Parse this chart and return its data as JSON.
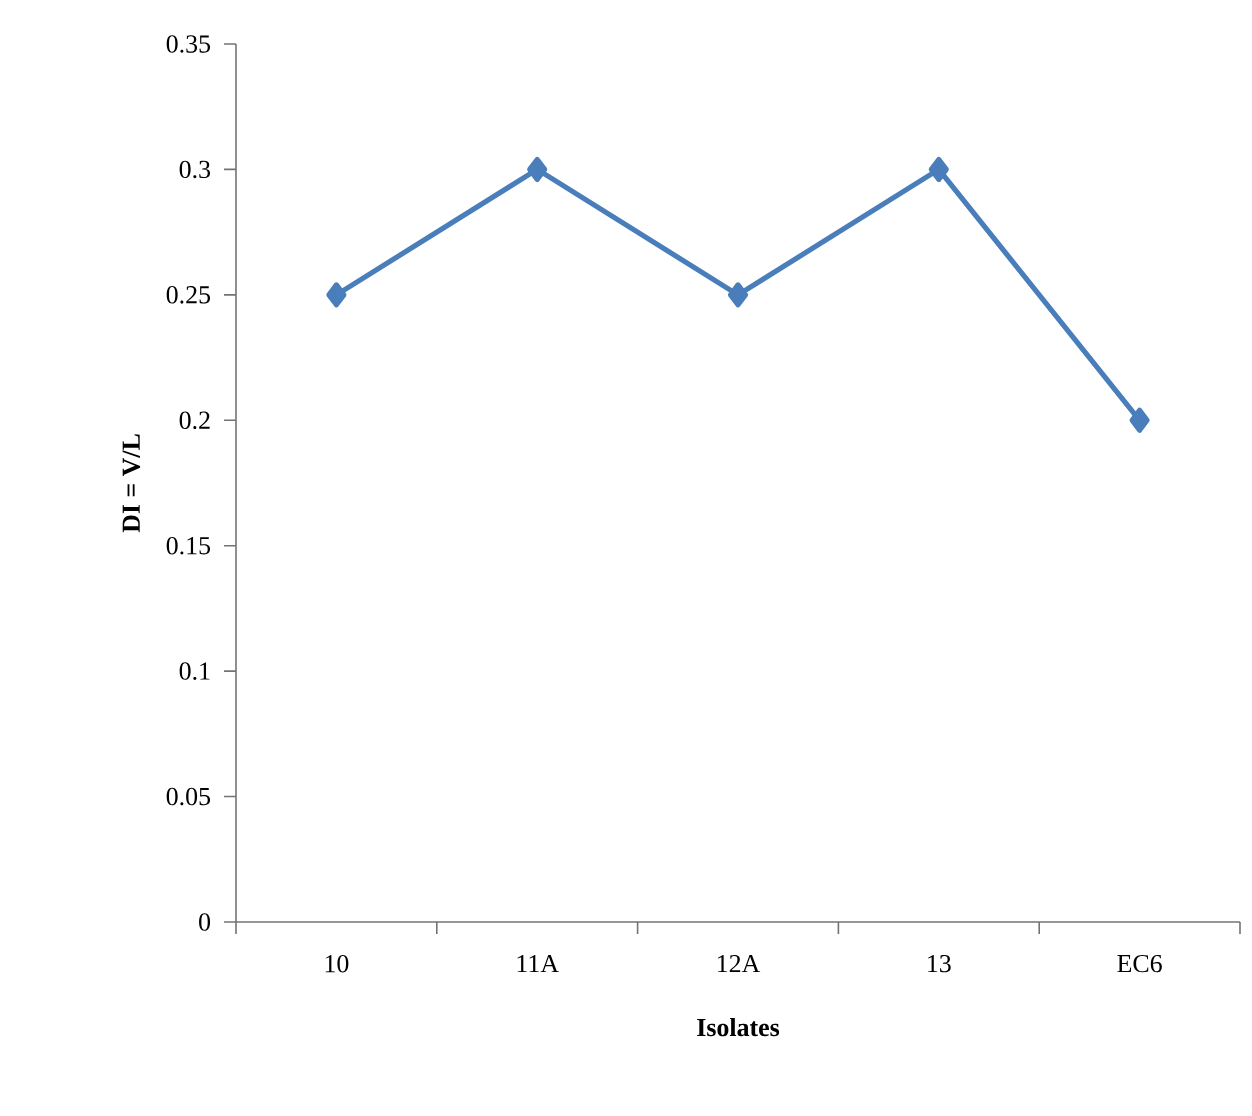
{
  "chart_data": {
    "type": "line",
    "xlabel": "Isolates",
    "ylabel": "DI = V/L",
    "categories": [
      "10",
      "11A",
      "12A",
      "13",
      "EC6"
    ],
    "series": [
      {
        "color": "#4a7ebb",
        "values": [
          0.25,
          0.3,
          0.25,
          0.3,
          0.2
        ]
      }
    ],
    "ylim": [
      0,
      0.35
    ],
    "yticks": [
      0,
      0.05,
      0.1,
      0.15,
      0.2,
      0.25,
      0.3,
      0.35
    ],
    "grid": false,
    "marker": "diamond",
    "line_style": "solid"
  }
}
